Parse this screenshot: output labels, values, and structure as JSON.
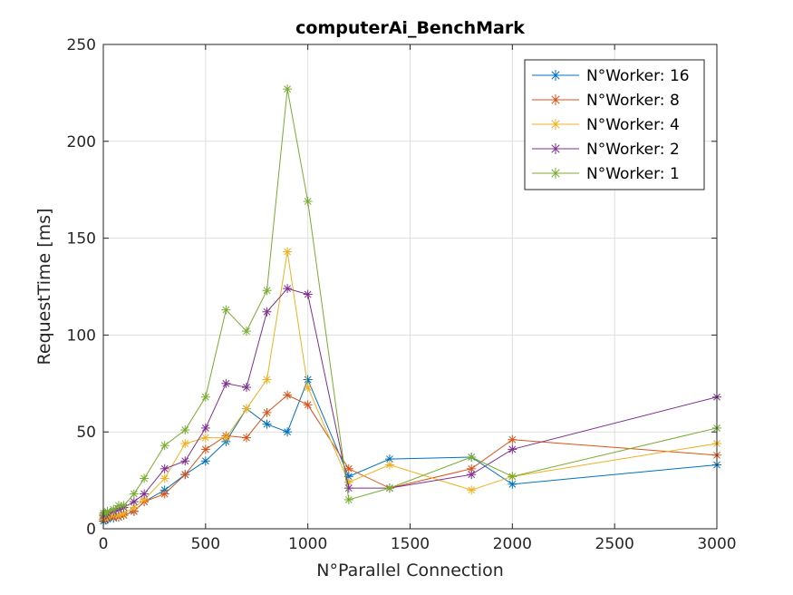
{
  "chart_data": {
    "type": "line",
    "title": "computerAi_BenchMark",
    "xlabel": "N°Parallel Connection",
    "ylabel": "RequestTime [ms]",
    "xlim": [
      0,
      3000
    ],
    "ylim": [
      0,
      250
    ],
    "xticks": [
      0,
      500,
      1000,
      1500,
      2000,
      2500,
      3000
    ],
    "yticks": [
      0,
      50,
      100,
      150,
      200,
      250
    ],
    "grid": true,
    "box": true,
    "legend_position": "top-right",
    "marker": "asterisk",
    "series": [
      {
        "name": "N°Worker: 16",
        "color": "#0072BD",
        "x": [
          1,
          10,
          20,
          50,
          75,
          100,
          150,
          200,
          300,
          400,
          500,
          600,
          700,
          800,
          900,
          1000,
          1200,
          1400,
          1800,
          2000,
          3000
        ],
        "y": [
          4,
          4.5,
          5,
          5.5,
          6,
          7,
          9,
          14,
          20,
          28,
          35,
          45,
          62,
          54,
          50,
          77,
          27,
          36,
          37,
          23,
          33
        ]
      },
      {
        "name": "N°Worker: 8",
        "color": "#D95319",
        "x": [
          1,
          10,
          20,
          50,
          75,
          100,
          150,
          200,
          300,
          400,
          500,
          600,
          700,
          800,
          900,
          1000,
          1200,
          1400,
          1800,
          2000,
          3000
        ],
        "y": [
          5,
          5,
          6,
          6,
          6,
          7,
          9,
          14,
          18,
          28,
          41,
          48,
          47,
          60,
          69,
          64,
          31,
          21,
          31,
          46,
          38
        ]
      },
      {
        "name": "N°Worker: 4",
        "color": "#EDB120",
        "x": [
          1,
          10,
          20,
          50,
          75,
          100,
          150,
          200,
          300,
          400,
          500,
          600,
          700,
          800,
          900,
          1000,
          1200,
          1400,
          1800,
          2000,
          3000
        ],
        "y": [
          6,
          6,
          6.5,
          7,
          7,
          8,
          11,
          15,
          26,
          44,
          47,
          47,
          62,
          77,
          143,
          73,
          24,
          33,
          20,
          27,
          44
        ]
      },
      {
        "name": "N°Worker: 2",
        "color": "#7E2F8E",
        "x": [
          1,
          10,
          20,
          50,
          75,
          100,
          150,
          200,
          300,
          400,
          500,
          600,
          700,
          800,
          900,
          1000,
          1200,
          1400,
          1800,
          2000,
          3000
        ],
        "y": [
          7,
          7,
          8,
          9,
          10,
          11,
          14,
          18,
          31,
          35,
          52,
          75,
          73,
          112,
          124,
          121,
          21,
          21,
          28,
          41,
          68
        ]
      },
      {
        "name": "N°Worker: 1",
        "color": "#77AC30",
        "x": [
          1,
          10,
          20,
          50,
          75,
          100,
          150,
          200,
          300,
          400,
          500,
          600,
          700,
          800,
          900,
          1000,
          1200,
          1400,
          1800,
          2000,
          3000
        ],
        "y": [
          8,
          8,
          9,
          10,
          12,
          12,
          18,
          26,
          43,
          51,
          68,
          113,
          102,
          123,
          227,
          169,
          15,
          21,
          37,
          27,
          52
        ]
      }
    ]
  }
}
